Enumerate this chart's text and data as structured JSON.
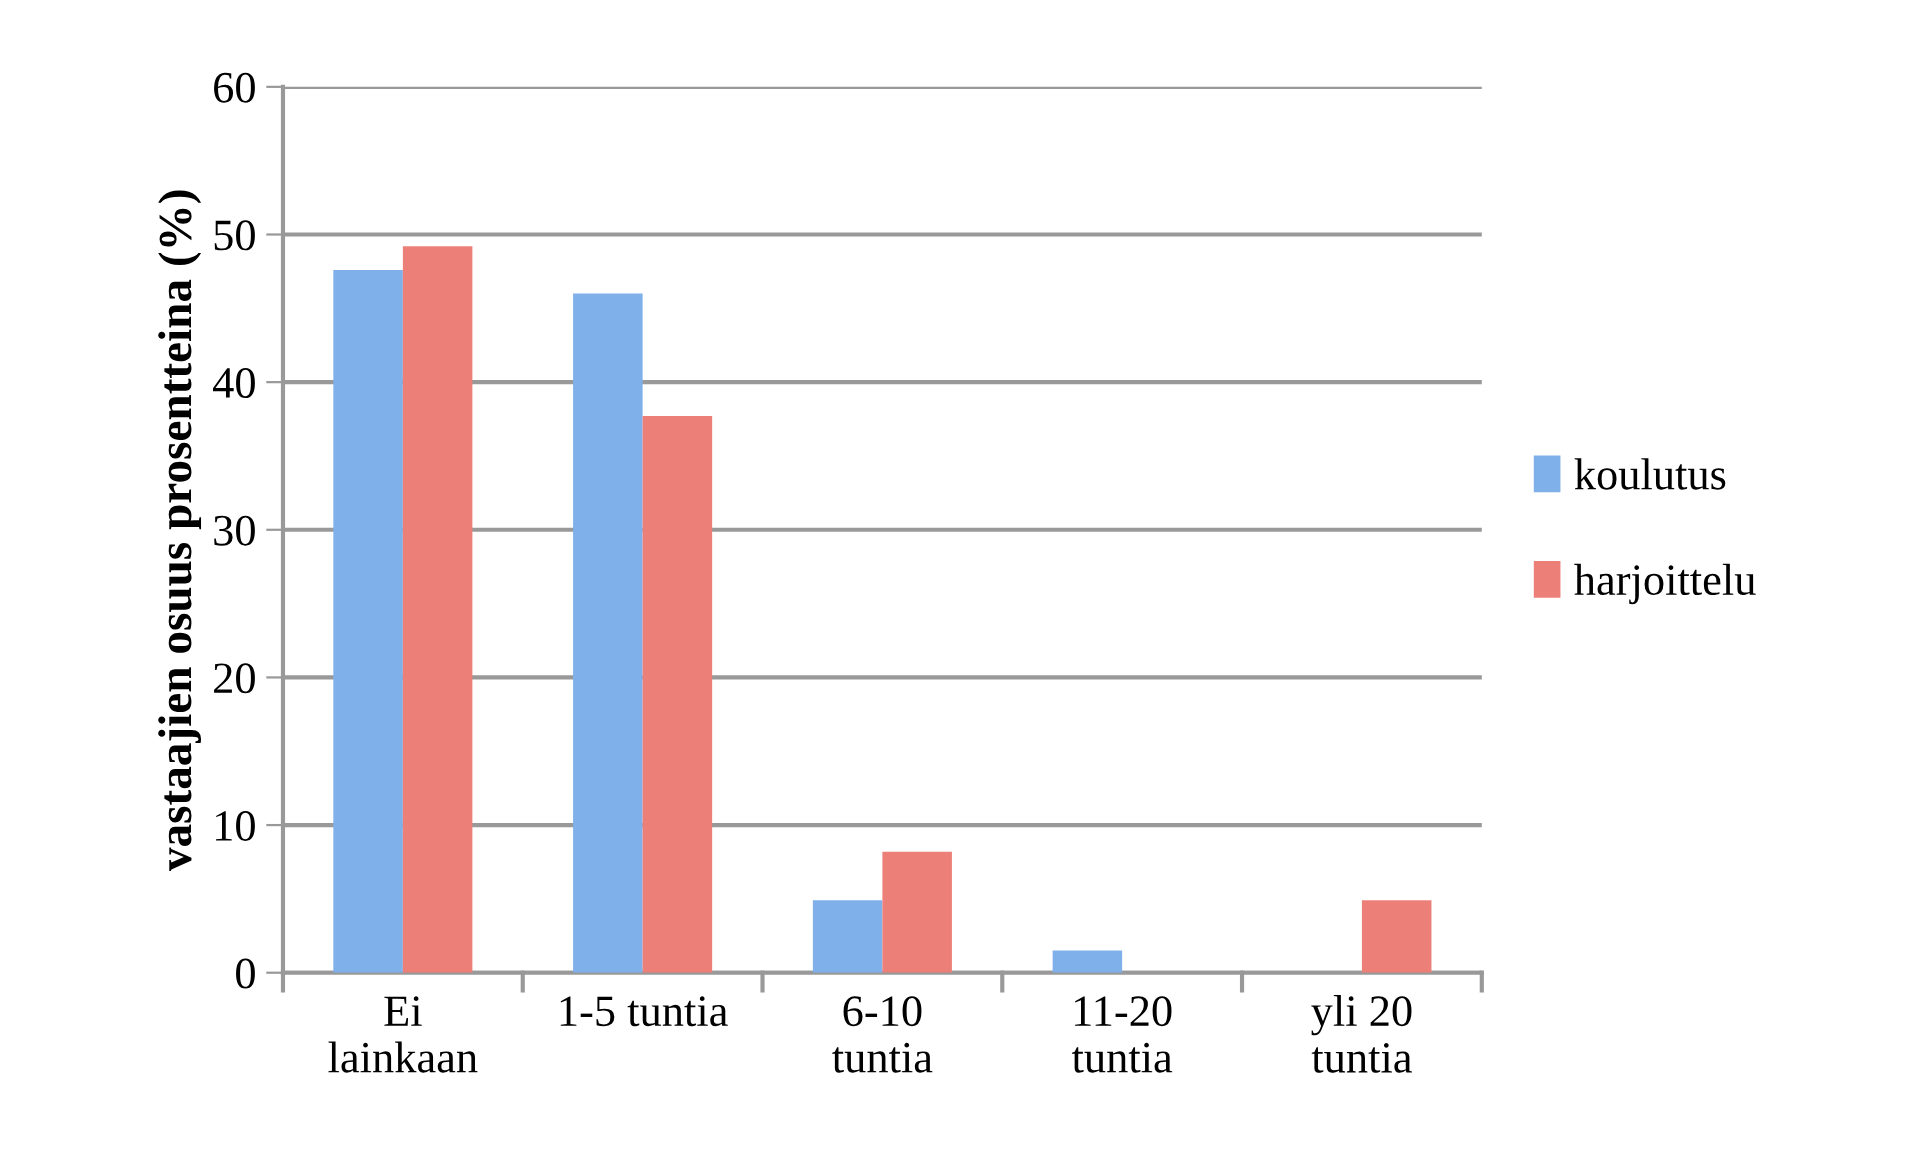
{
  "chart_data": {
    "type": "bar",
    "ylabel": "vastaajien osuus prosentteina (%)",
    "categories": [
      "Ei\nlainkaan",
      "1-5 tuntia",
      "6-10\ntuntia",
      "11-20\ntuntia",
      "yli 20\ntuntia"
    ],
    "series": [
      {
        "name": "koulutus",
        "color": "#7fb0ea",
        "values": [
          47.6,
          46.0,
          4.9,
          1.5,
          0
        ]
      },
      {
        "name": "harjoittelu",
        "color": "#ec8079",
        "values": [
          49.2,
          37.7,
          8.2,
          0,
          4.9
        ]
      }
    ],
    "ylim": [
      0,
      60
    ],
    "yticks": [
      0,
      10,
      20,
      30,
      40,
      50,
      60
    ],
    "grid": "y",
    "legend": "right"
  }
}
